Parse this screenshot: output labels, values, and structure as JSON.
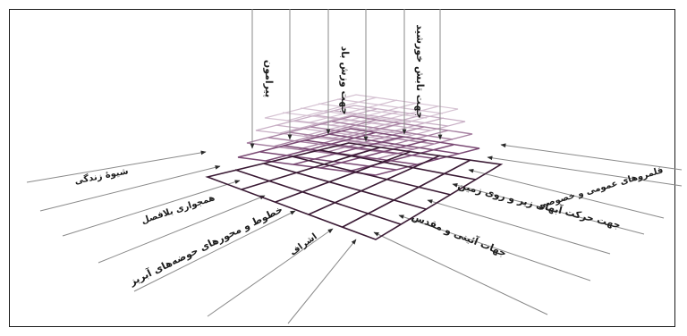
{
  "vertical_labels": {
    "surroundings": "پیرامون",
    "wind_direction": "جهت وزش باد",
    "sun_direction": "جهت تابش خورشید"
  },
  "left_labels": {
    "lifestyle": "شیوهٔ زندگی",
    "neighborhood": "همجواری بلافصل",
    "pond_axes": "خطوط و محورهای حوضه‌های آبریز",
    "nobility": "اشراف"
  },
  "right_labels": {
    "territories": "قلمروهای عمومی و خصوصی",
    "water_flow": "جهت حرکت آبهای زیر و روی زمین",
    "ritual_directions": "جهات آئینی و مقدس"
  },
  "colors": {
    "frame": "#1a1a1a",
    "line": "#8a8a8a",
    "grid_dark": "#3a1a34",
    "grid_mid": "#7a4a74",
    "grid_light": "#c9b0c6"
  }
}
